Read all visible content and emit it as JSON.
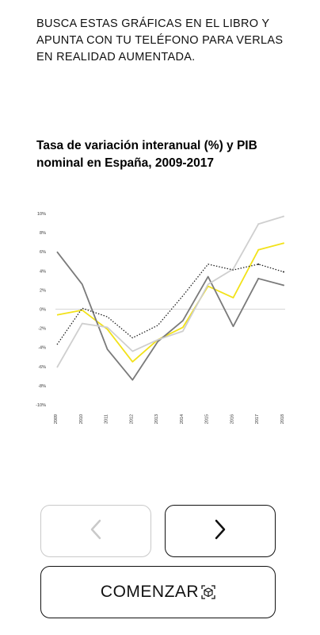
{
  "instructions": "BUSCA ESTAS GRÁFICAS EN EL LIBRO Y APUNTA CON TU TELÉFONO PARA VERLAS EN REALIDAD AUMENTADA.",
  "chart_title": "Tasa de variación interanual (%) y PIB nominal en España, 2009-2017",
  "buttons": {
    "prev_icon": "chevron-left-icon",
    "next_icon": "chevron-right-icon",
    "start_label": "COMENZAR",
    "start_icon": "augmented-reality-cube-icon"
  },
  "colors": {
    "yellow": "#f2e21a",
    "dark_gray": "#7a7a7a",
    "light_gray": "#cfcfcf",
    "dotted": "#222222",
    "disabled": "#c9c9c9",
    "text": "#111111"
  },
  "chart_data": {
    "type": "line",
    "title": "Tasa de variación interanual (%) y PIB nominal en España, 2009-2017",
    "xlabel": "",
    "ylabel": "",
    "categories": [
      "2009",
      "2010",
      "2011",
      "2012",
      "2013",
      "2014",
      "2015",
      "2016",
      "2017",
      "2018"
    ],
    "yticks": [
      "10%",
      "8%",
      "6%",
      "4%",
      "2%",
      "0%",
      "-2%",
      "-4%",
      "-6%",
      "-8%",
      "-10%"
    ],
    "ylim": [
      -10,
      10
    ],
    "grid": false,
    "series": [
      {
        "color": "#f2e21a",
        "style": "solid",
        "values": [
          -0.6,
          -0.1,
          -2.1,
          -5.5,
          -3.2,
          -1.9,
          2.4,
          1.2,
          6.2,
          6.9
        ]
      },
      {
        "color": "#7a7a7a",
        "style": "solid",
        "values": [
          6.0,
          2.6,
          -4.2,
          -7.4,
          -3.4,
          -1.2,
          3.4,
          -1.8,
          3.2,
          2.5
        ]
      },
      {
        "color": "#cfcfcf",
        "style": "solid",
        "values": [
          -6.1,
          -1.5,
          -1.9,
          -4.4,
          -3.2,
          -2.3,
          2.6,
          4.2,
          8.9,
          9.7
        ]
      },
      {
        "color": "#222222",
        "style": "dotted",
        "values": [
          -3.7,
          0.1,
          -0.8,
          -3.0,
          -1.7,
          1.4,
          4.7,
          4.1,
          4.7,
          3.9
        ]
      }
    ]
  }
}
